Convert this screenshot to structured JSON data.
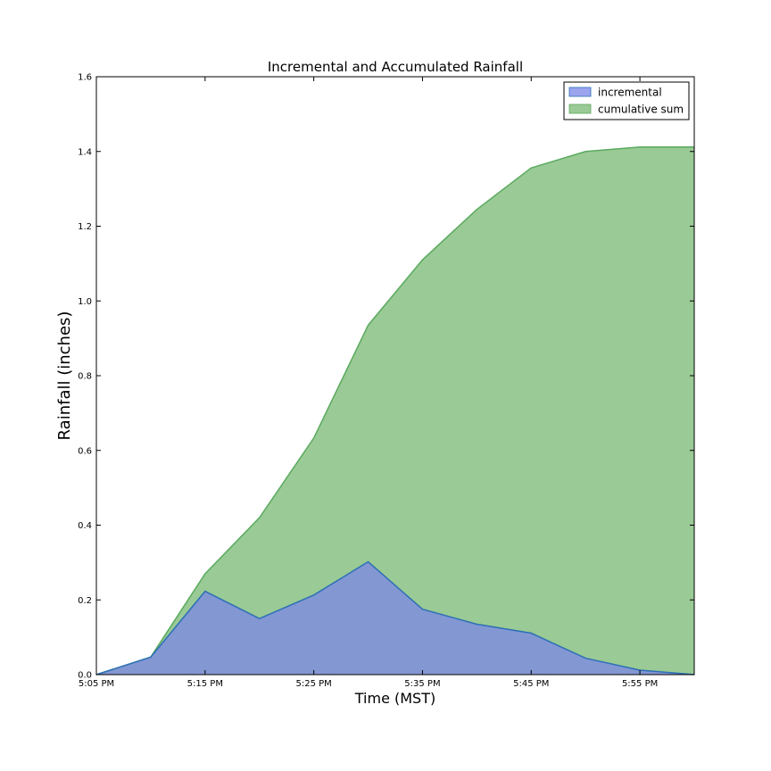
{
  "chart_data": {
    "type": "area",
    "title": "Incremental and Accumulated Rainfall",
    "xlabel": "Time (MST)",
    "ylabel": "Rainfall (inches)",
    "x": [
      "5:05 PM",
      "5:10 PM",
      "5:15 PM",
      "5:20 PM",
      "5:25 PM",
      "5:30 PM",
      "5:35 PM",
      "5:40 PM",
      "5:45 PM",
      "5:50 PM",
      "5:55 PM",
      "6:00 PM"
    ],
    "x_tick_labels": [
      "5:05 PM",
      "5:15 PM",
      "5:25 PM",
      "5:35 PM",
      "5:45 PM",
      "5:55 PM"
    ],
    "ylim": [
      0,
      1.6
    ],
    "y_ticks": [
      "0.0",
      "0.2",
      "0.4",
      "0.6",
      "0.8",
      "1.0",
      "1.2",
      "1.4",
      "1.6"
    ],
    "grid": false,
    "legend_position": "top-right",
    "series": [
      {
        "name": "incremental",
        "color": "#7b86e8",
        "values": [
          0.0,
          0.047,
          0.223,
          0.15,
          0.213,
          0.302,
          0.175,
          0.135,
          0.111,
          0.044,
          0.012,
          0.0
        ]
      },
      {
        "name": "cumulative sum",
        "color": "#9aca95",
        "values": [
          0.0,
          0.047,
          0.27,
          0.42,
          0.633,
          0.935,
          1.11,
          1.245,
          1.356,
          1.4,
          1.412,
          1.412
        ]
      }
    ]
  }
}
